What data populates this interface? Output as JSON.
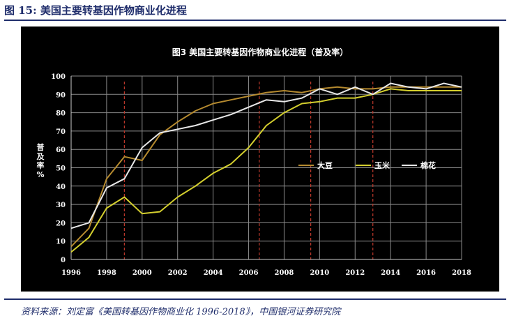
{
  "header": {
    "figure_title": "图 15:  美国主要转基因作物商业化进程"
  },
  "footer": {
    "source": "资料来源：刘定富《美国转基因作物商业化 1996-2018》，中国银河证券研究院"
  },
  "chart_data": {
    "type": "line",
    "title": "图3 美国主要转基因作物商业化进程（普及率）",
    "ylabel": "普及率%",
    "xlim": [
      1996,
      2018
    ],
    "ylim": [
      0,
      100
    ],
    "x_ticks": [
      1996,
      1998,
      2000,
      2002,
      2004,
      2006,
      2008,
      2010,
      2012,
      2014,
      2016,
      2018
    ],
    "y_ticks": [
      0,
      10,
      20,
      30,
      40,
      50,
      60,
      70,
      80,
      90,
      100
    ],
    "grid": true,
    "legend_position": "center-right",
    "colors": {
      "background": "#000000",
      "grid": "#8a8a8a",
      "reference_line": "#c0392b"
    },
    "reference_lines_x": [
      1999,
      2006.6,
      2009.5,
      2013
    ],
    "x": [
      1996,
      1997,
      1998,
      1999,
      2000,
      2001,
      2002,
      2003,
      2004,
      2005,
      2006,
      2007,
      2008,
      2009,
      2010,
      2011,
      2012,
      2013,
      2014,
      2015,
      2016,
      2017,
      2018
    ],
    "series": [
      {
        "name": "大豆",
        "color": "#b58a2f",
        "values": [
          7,
          17,
          44,
          56,
          54,
          68,
          75,
          81,
          85,
          87,
          89,
          91,
          92,
          91,
          93,
          94,
          93,
          93,
          94,
          94,
          94,
          94,
          94
        ]
      },
      {
        "name": "玉米",
        "color": "#d4cf2e",
        "values": [
          4,
          12,
          28,
          34,
          25,
          26,
          34,
          40,
          47,
          52,
          61,
          73,
          80,
          85,
          86,
          88,
          88,
          90,
          93,
          92,
          92,
          92,
          92
        ]
      },
      {
        "name": "棉花",
        "color": "#e8e8e8",
        "values": [
          17,
          20,
          39,
          44,
          61,
          69,
          71,
          73,
          76,
          79,
          83,
          87,
          86,
          88,
          93,
          90,
          94,
          90,
          96,
          94,
          93,
          96,
          94
        ]
      }
    ]
  }
}
